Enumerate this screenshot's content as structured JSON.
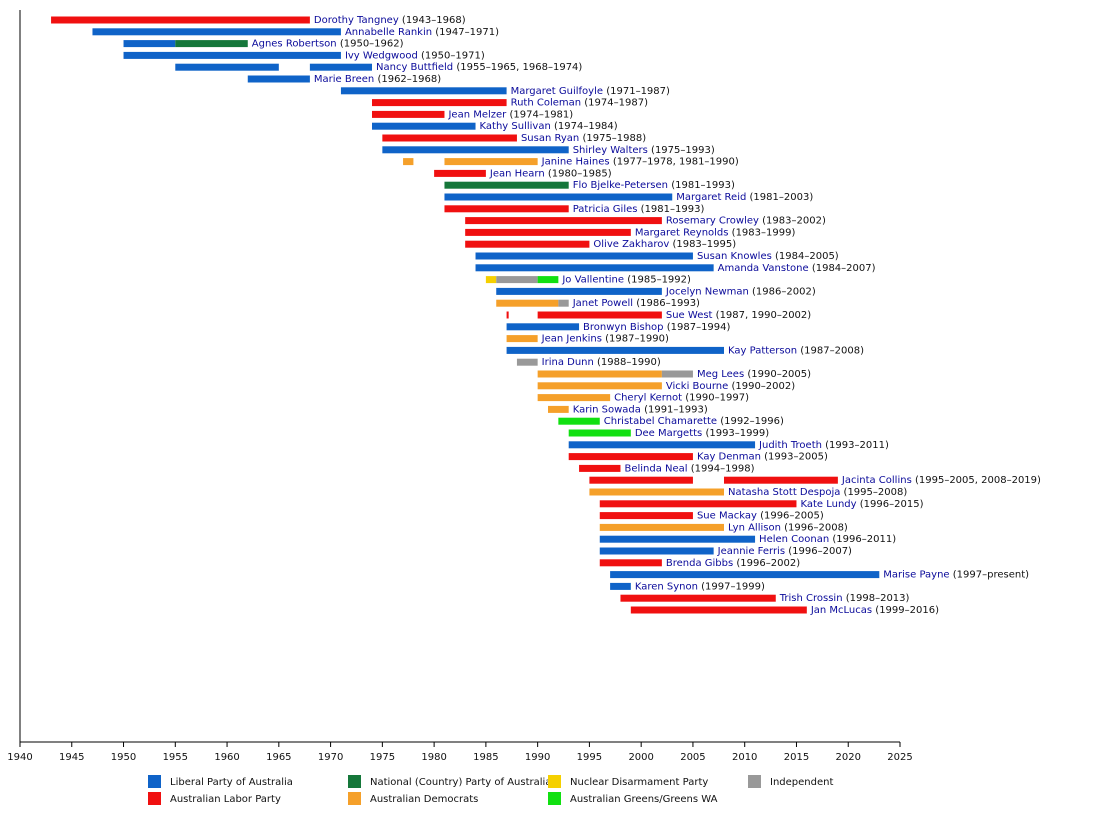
{
  "chart_data": {
    "type": "timeline",
    "xlim": [
      1940,
      2025
    ],
    "xticks": [
      1940,
      1945,
      1950,
      1955,
      1960,
      1965,
      1970,
      1975,
      1980,
      1985,
      1990,
      1995,
      2000,
      2005,
      2010,
      2015,
      2020,
      2025
    ],
    "parties": [
      {
        "name": "Liberal Party of Australia",
        "color": "#0f63c8"
      },
      {
        "name": "Australian Labor Party",
        "color": "#f01010"
      },
      {
        "name": "National (Country) Party of Australia",
        "color": "#15773a"
      },
      {
        "name": "Australian Democrats",
        "color": "#f5a02a"
      },
      {
        "name": "Nuclear Disarmament Party",
        "color": "#f5d000"
      },
      {
        "name": "Australian Greens/Greens WA",
        "color": "#11e011"
      },
      {
        "name": "Independent",
        "color": "#999999"
      }
    ],
    "rows": [
      {
        "name": "Dorothy Tangney",
        "years": "(1943–1968)",
        "segments": [
          {
            "start": 1943,
            "end": 1968,
            "party": "Australian Labor Party"
          }
        ]
      },
      {
        "name": "Annabelle Rankin",
        "years": "(1947–1971)",
        "segments": [
          {
            "start": 1947,
            "end": 1971,
            "party": "Liberal Party of Australia"
          }
        ]
      },
      {
        "name": "Agnes Robertson",
        "years": "(1950–1962)",
        "segments": [
          {
            "start": 1950,
            "end": 1955,
            "party": "Liberal Party of Australia"
          },
          {
            "start": 1955,
            "end": 1962,
            "party": "National (Country) Party of Australia"
          }
        ]
      },
      {
        "name": "Ivy Wedgwood",
        "years": "(1950–1971)",
        "segments": [
          {
            "start": 1950,
            "end": 1971,
            "party": "Liberal Party of Australia"
          }
        ]
      },
      {
        "name": "Nancy Buttfield",
        "years": "(1955–1965, 1968–1974)",
        "segments": [
          {
            "start": 1955,
            "end": 1965,
            "party": "Liberal Party of Australia"
          },
          {
            "start": 1968,
            "end": 1974,
            "party": "Liberal Party of Australia"
          }
        ]
      },
      {
        "name": "Marie Breen",
        "years": "(1962–1968)",
        "segments": [
          {
            "start": 1962,
            "end": 1968,
            "party": "Liberal Party of Australia"
          }
        ]
      },
      {
        "name": "Margaret Guilfoyle",
        "years": "(1971–1987)",
        "segments": [
          {
            "start": 1971,
            "end": 1987,
            "party": "Liberal Party of Australia"
          }
        ]
      },
      {
        "name": "Ruth Coleman",
        "years": "(1974–1987)",
        "segments": [
          {
            "start": 1974,
            "end": 1987,
            "party": "Australian Labor Party"
          }
        ]
      },
      {
        "name": "Jean Melzer",
        "years": "(1974–1981)",
        "segments": [
          {
            "start": 1974,
            "end": 1981,
            "party": "Australian Labor Party"
          }
        ]
      },
      {
        "name": "Kathy Sullivan",
        "years": "(1974–1984)",
        "segments": [
          {
            "start": 1974,
            "end": 1984,
            "party": "Liberal Party of Australia"
          }
        ]
      },
      {
        "name": "Susan Ryan",
        "years": "(1975–1988)",
        "segments": [
          {
            "start": 1975,
            "end": 1988,
            "party": "Australian Labor Party"
          }
        ]
      },
      {
        "name": "Shirley Walters",
        "years": "(1975–1993)",
        "segments": [
          {
            "start": 1975,
            "end": 1993,
            "party": "Liberal Party of Australia"
          }
        ]
      },
      {
        "name": "Janine Haines",
        "years": "(1977–1978, 1981–1990)",
        "segments": [
          {
            "start": 1977,
            "end": 1978,
            "party": "Australian Democrats"
          },
          {
            "start": 1981,
            "end": 1990,
            "party": "Australian Democrats"
          }
        ]
      },
      {
        "name": "Jean Hearn",
        "years": "(1980–1985)",
        "segments": [
          {
            "start": 1980,
            "end": 1985,
            "party": "Australian Labor Party"
          }
        ]
      },
      {
        "name": "Flo Bjelke-Petersen",
        "years": "(1981–1993)",
        "segments": [
          {
            "start": 1981,
            "end": 1993,
            "party": "National (Country) Party of Australia"
          }
        ]
      },
      {
        "name": "Margaret Reid",
        "years": "(1981–2003)",
        "segments": [
          {
            "start": 1981,
            "end": 2003,
            "party": "Liberal Party of Australia"
          }
        ]
      },
      {
        "name": "Patricia Giles",
        "years": "(1981–1993)",
        "segments": [
          {
            "start": 1981,
            "end": 1993,
            "party": "Australian Labor Party"
          }
        ]
      },
      {
        "name": "Rosemary Crowley",
        "years": "(1983–2002)",
        "segments": [
          {
            "start": 1983,
            "end": 2002,
            "party": "Australian Labor Party"
          }
        ]
      },
      {
        "name": "Margaret Reynolds",
        "years": "(1983–1999)",
        "segments": [
          {
            "start": 1983,
            "end": 1999,
            "party": "Australian Labor Party"
          }
        ]
      },
      {
        "name": "Olive Zakharov",
        "years": "(1983–1995)",
        "segments": [
          {
            "start": 1983,
            "end": 1995,
            "party": "Australian Labor Party"
          }
        ]
      },
      {
        "name": "Susan Knowles",
        "years": "(1984–2005)",
        "segments": [
          {
            "start": 1984,
            "end": 2005,
            "party": "Liberal Party of Australia"
          }
        ]
      },
      {
        "name": "Amanda Vanstone",
        "years": "(1984–2007)",
        "segments": [
          {
            "start": 1984,
            "end": 2007,
            "party": "Liberal Party of Australia"
          }
        ]
      },
      {
        "name": "Jo Vallentine",
        "years": "(1985–1992)",
        "segments": [
          {
            "start": 1985,
            "end": 1986,
            "party": "Nuclear Disarmament Party"
          },
          {
            "start": 1986,
            "end": 1990,
            "party": "Independent"
          },
          {
            "start": 1990,
            "end": 1992,
            "party": "Australian Greens/Greens WA"
          }
        ]
      },
      {
        "name": "Jocelyn Newman",
        "years": "(1986–2002)",
        "segments": [
          {
            "start": 1986,
            "end": 2002,
            "party": "Liberal Party of Australia"
          }
        ]
      },
      {
        "name": "Janet Powell",
        "years": "(1986–1993)",
        "segments": [
          {
            "start": 1986,
            "end": 1992,
            "party": "Australian Democrats"
          },
          {
            "start": 1992,
            "end": 1993,
            "party": "Independent"
          }
        ]
      },
      {
        "name": "Sue West",
        "years": "(1987, 1990–2002)",
        "segments": [
          {
            "start": 1987,
            "end": 1987.2,
            "party": "Australian Labor Party"
          },
          {
            "start": 1990,
            "end": 2002,
            "party": "Australian Labor Party"
          }
        ]
      },
      {
        "name": "Bronwyn Bishop",
        "years": "(1987–1994)",
        "segments": [
          {
            "start": 1987,
            "end": 1994,
            "party": "Liberal Party of Australia"
          }
        ]
      },
      {
        "name": "Jean Jenkins",
        "years": "(1987–1990)",
        "segments": [
          {
            "start": 1987,
            "end": 1990,
            "party": "Australian Democrats"
          }
        ]
      },
      {
        "name": "Kay Patterson",
        "years": "(1987–2008)",
        "segments": [
          {
            "start": 1987,
            "end": 2008,
            "party": "Liberal Party of Australia"
          }
        ]
      },
      {
        "name": "Irina Dunn",
        "years": "(1988–1990)",
        "segments": [
          {
            "start": 1988,
            "end": 1990,
            "party": "Independent"
          }
        ]
      },
      {
        "name": "Meg Lees",
        "years": "(1990–2005)",
        "segments": [
          {
            "start": 1990,
            "end": 2002,
            "party": "Australian Democrats"
          },
          {
            "start": 2002,
            "end": 2005,
            "party": "Independent"
          }
        ]
      },
      {
        "name": "Vicki Bourne",
        "years": "(1990–2002)",
        "segments": [
          {
            "start": 1990,
            "end": 2002,
            "party": "Australian Democrats"
          }
        ]
      },
      {
        "name": "Cheryl Kernot",
        "years": "(1990–1997)",
        "segments": [
          {
            "start": 1990,
            "end": 1997,
            "party": "Australian Democrats"
          }
        ]
      },
      {
        "name": "Karin Sowada",
        "years": "(1991–1993)",
        "segments": [
          {
            "start": 1991,
            "end": 1993,
            "party": "Australian Democrats"
          }
        ]
      },
      {
        "name": "Christabel Chamarette",
        "years": "(1992–1996)",
        "segments": [
          {
            "start": 1992,
            "end": 1996,
            "party": "Australian Greens/Greens WA"
          }
        ]
      },
      {
        "name": "Dee Margetts",
        "years": "(1993–1999)",
        "segments": [
          {
            "start": 1993,
            "end": 1999,
            "party": "Australian Greens/Greens WA"
          }
        ]
      },
      {
        "name": "Judith Troeth",
        "years": "(1993–2011)",
        "segments": [
          {
            "start": 1993,
            "end": 2011,
            "party": "Liberal Party of Australia"
          }
        ]
      },
      {
        "name": "Kay Denman",
        "years": "(1993–2005)",
        "segments": [
          {
            "start": 1993,
            "end": 2005,
            "party": "Australian Labor Party"
          }
        ]
      },
      {
        "name": "Belinda Neal",
        "years": "(1994–1998)",
        "segments": [
          {
            "start": 1994,
            "end": 1998,
            "party": "Australian Labor Party"
          }
        ]
      },
      {
        "name": "Jacinta Collins",
        "years": "(1995–2005, 2008–2019)",
        "segments": [
          {
            "start": 1995,
            "end": 2005,
            "party": "Australian Labor Party"
          },
          {
            "start": 2008,
            "end": 2019,
            "party": "Australian Labor Party"
          }
        ]
      },
      {
        "name": "Natasha Stott Despoja",
        "years": "(1995–2008)",
        "segments": [
          {
            "start": 1995,
            "end": 2008,
            "party": "Australian Democrats"
          }
        ]
      },
      {
        "name": "Kate Lundy",
        "years": "(1996–2015)",
        "segments": [
          {
            "start": 1996,
            "end": 2015,
            "party": "Australian Labor Party"
          }
        ]
      },
      {
        "name": "Sue Mackay",
        "years": "(1996–2005)",
        "segments": [
          {
            "start": 1996,
            "end": 2005,
            "party": "Australian Labor Party"
          }
        ]
      },
      {
        "name": "Lyn Allison",
        "years": "(1996–2008)",
        "segments": [
          {
            "start": 1996,
            "end": 2008,
            "party": "Australian Democrats"
          }
        ]
      },
      {
        "name": "Helen Coonan",
        "years": "(1996–2011)",
        "segments": [
          {
            "start": 1996,
            "end": 2011,
            "party": "Liberal Party of Australia"
          }
        ]
      },
      {
        "name": "Jeannie Ferris",
        "years": "(1996–2007)",
        "segments": [
          {
            "start": 1996,
            "end": 2007,
            "party": "Liberal Party of Australia"
          }
        ]
      },
      {
        "name": "Brenda Gibbs",
        "years": "(1996–2002)",
        "segments": [
          {
            "start": 1996,
            "end": 2002,
            "party": "Australian Labor Party"
          }
        ]
      },
      {
        "name": "Marise Payne",
        "years": "(1997–present)",
        "segments": [
          {
            "start": 1997,
            "end": 2023,
            "party": "Liberal Party of Australia"
          }
        ]
      },
      {
        "name": "Karen Synon",
        "years": "(1997–1999)",
        "segments": [
          {
            "start": 1997,
            "end": 1999,
            "party": "Liberal Party of Australia"
          }
        ]
      },
      {
        "name": "Trish Crossin",
        "years": "(1998–2013)",
        "segments": [
          {
            "start": 1998,
            "end": 2013,
            "party": "Australian Labor Party"
          }
        ]
      },
      {
        "name": "Jan McLucas",
        "years": "(1999–2016)",
        "segments": [
          {
            "start": 1999,
            "end": 2016,
            "party": "Australian Labor Party"
          }
        ]
      }
    ]
  }
}
